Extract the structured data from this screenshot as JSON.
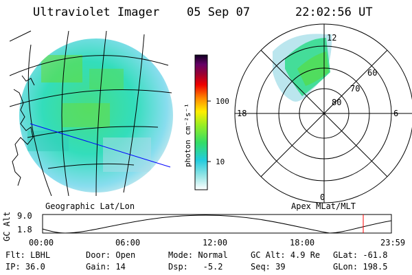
{
  "header": {
    "instrument": "Ultraviolet Imager",
    "date": "05 Sep 07",
    "time": "22:02:56 UT"
  },
  "colors": {
    "background": "#ffffff",
    "foreground": "#000000",
    "track_line": "#0000ff",
    "marker": "#ff0000"
  },
  "colorbar": {
    "label": "photon cm⁻²s⁻¹",
    "ticks": [
      "100",
      "10"
    ]
  },
  "geo_panel": {
    "label": "Geographic Lat/Lon"
  },
  "polar_panel": {
    "label": "Apex MLat/MLT",
    "mlt_labels": {
      "top": "12",
      "left": "18",
      "right": "6",
      "bottom": "0"
    },
    "lat_labels": [
      "60",
      "70",
      "80"
    ]
  },
  "timeline": {
    "ylabel": "GC Alt",
    "yticks": [
      "9.0",
      "1.8"
    ],
    "xticks": [
      "00:00",
      "06:00",
      "12:00",
      "18:00",
      "23:59"
    ],
    "current_time": "22:02:56"
  },
  "info": {
    "flt_label": "Flt:",
    "flt_value": "LBHL",
    "ip_label": "IP:",
    "ip_value": "36.0",
    "door_label": "Door:",
    "door_value": "Open",
    "gain_label": "Gain:",
    "gain_value": "14",
    "mode_label": "Mode:",
    "mode_value": "Normal",
    "dsp_label": "Dsp:",
    "dsp_value": "-5.2",
    "gcalt_label": "GC Alt:",
    "gcalt_value": "4.9 Re",
    "seq_label": "Seq:",
    "seq_value": "39",
    "glat_label": "GLat:",
    "glat_value": "-61.8",
    "glon_label": "GLon:",
    "glon_value": "198.5"
  }
}
